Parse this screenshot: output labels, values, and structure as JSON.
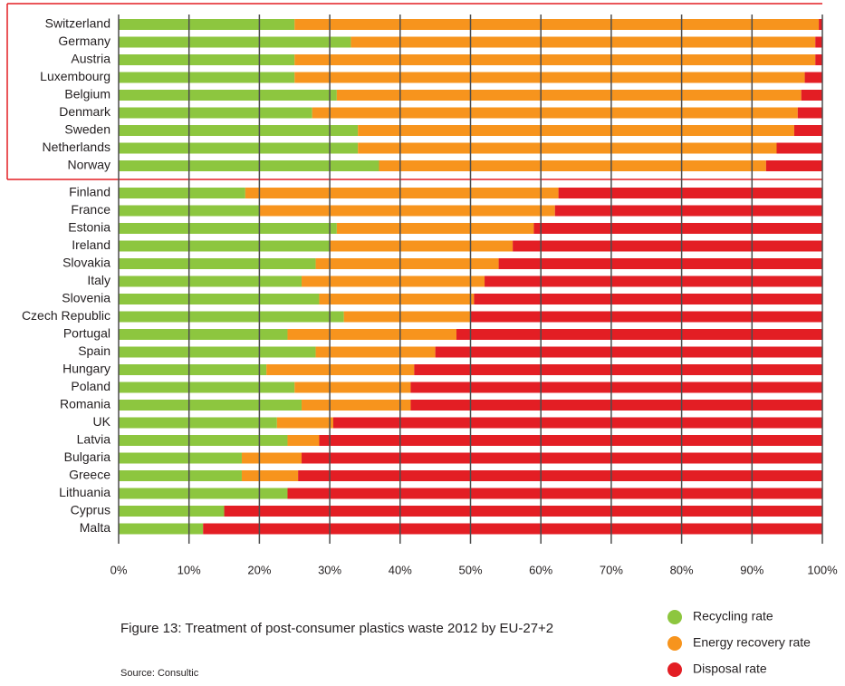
{
  "chart_data": {
    "type": "stacked-bar-horizontal",
    "title": "Figure 13: Treatment of post-consumer plastics waste 2012 by EU-27+2",
    "source": "Source: Consultic",
    "categories": [
      "Switzerland",
      "Germany",
      "Austria",
      "Luxembourg",
      "Belgium",
      "Denmark",
      "Sweden",
      "Netherlands",
      "Norway",
      "Finland",
      "France",
      "Estonia",
      "Ireland",
      "Slovakia",
      "Italy",
      "Slovenia",
      "Czech Republic",
      "Portugal",
      "Spain",
      "Hungary",
      "Poland",
      "Romania",
      "UK",
      "Latvia",
      "Bulgaria",
      "Greece",
      "Lithuania",
      "Cyprus",
      "Malta"
    ],
    "series": [
      {
        "name": "Recycling rate",
        "color": "#8dc63f",
        "values": [
          25,
          33,
          25,
          25,
          31,
          27.5,
          34,
          34,
          37,
          18,
          20,
          31,
          30,
          28,
          26,
          28.5,
          32,
          24,
          28,
          21,
          25,
          26,
          22.5,
          24,
          17.5,
          17.5,
          24,
          15,
          12
        ]
      },
      {
        "name": "Energy recovery rate",
        "color": "#f7941d",
        "values": [
          74.5,
          66,
          74,
          72.5,
          66,
          69,
          62,
          59.5,
          55,
          44.5,
          42,
          28,
          26,
          26,
          26,
          22,
          18,
          24,
          17,
          21,
          16.5,
          15.5,
          8,
          4.5,
          8.5,
          8,
          0,
          0,
          0
        ]
      },
      {
        "name": "Disposal rate",
        "color": "#e31e24",
        "values": [
          0.5,
          1,
          1,
          2.5,
          3,
          3.5,
          4,
          6.5,
          8,
          37.5,
          38,
          41,
          44,
          46,
          48,
          49.5,
          50,
          52,
          55,
          58,
          58.5,
          58.5,
          69.5,
          71.5,
          74,
          74.5,
          76,
          85,
          88
        ]
      }
    ],
    "xlim": [
      0,
      100
    ],
    "xticks": [
      {
        "value": 0,
        "label": "0%"
      },
      {
        "value": 10,
        "label": "10%"
      },
      {
        "value": 20,
        "label": "20%"
      },
      {
        "value": 30,
        "label": "30%"
      },
      {
        "value": 40,
        "label": "40%"
      },
      {
        "value": 50,
        "label": "50%"
      },
      {
        "value": 60,
        "label": "60%"
      },
      {
        "value": 70,
        "label": "70%"
      },
      {
        "value": 80,
        "label": "80%"
      },
      {
        "value": 90,
        "label": "90%"
      },
      {
        "value": 100,
        "label": "100%"
      }
    ],
    "grid": true,
    "legend": "bottom-right"
  }
}
